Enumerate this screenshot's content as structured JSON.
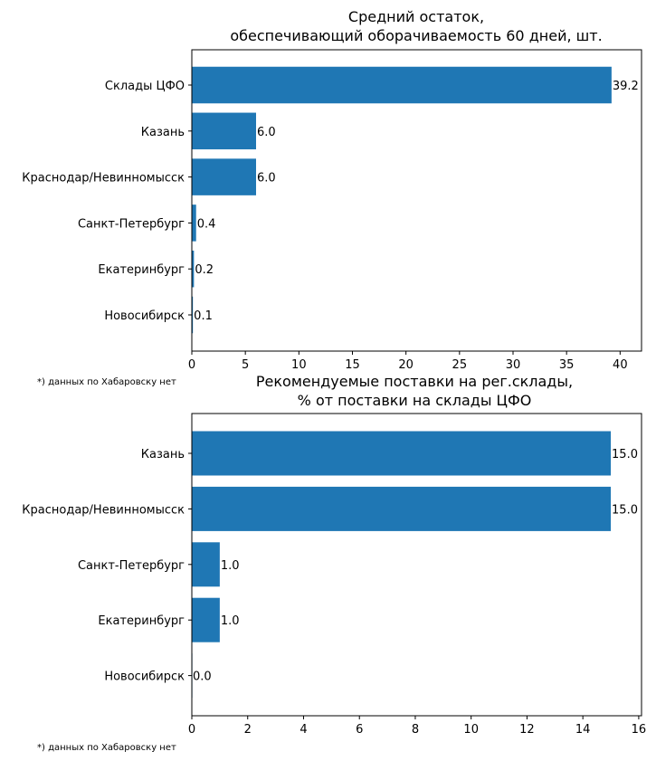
{
  "bar_color": "#1f77b4",
  "chart_data": [
    {
      "type": "bar",
      "orientation": "horizontal",
      "title": [
        "Средний остаток,",
        "обеспечивающий оборачиваемость 60 дней, шт."
      ],
      "categories": [
        "Склады ЦФО",
        "Казань",
        "Краснодар/Невинномысск",
        "Санкт-Петербург",
        "Екатеринбург",
        "Новосибирск"
      ],
      "values": [
        39.2,
        6.0,
        6.0,
        0.4,
        0.2,
        0.1
      ],
      "data_labels": [
        "39.2",
        "6.0",
        "6.0",
        "0.4",
        "0.2",
        "0.1"
      ],
      "xlim": [
        0,
        42
      ],
      "xticks": [
        0,
        5,
        10,
        15,
        20,
        25,
        30,
        35,
        40
      ],
      "footnote": "*) данных по Хабаровску нет"
    },
    {
      "type": "bar",
      "orientation": "horizontal",
      "title": [
        "Рекомендуемые поставки на рег.склады,",
        "% от поставки на склады ЦФО"
      ],
      "categories": [
        "Казань",
        "Краснодар/Невинномысск",
        "Санкт-Петербург",
        "Екатеринбург",
        "Новосибирск"
      ],
      "values": [
        15.0,
        15.0,
        1.0,
        1.0,
        0.0
      ],
      "data_labels": [
        "15.0",
        "15.0",
        "1.0",
        "1.0",
        "0.0"
      ],
      "xlim": [
        0,
        16.1
      ],
      "xticks": [
        0,
        2,
        4,
        6,
        8,
        10,
        12,
        14,
        16
      ],
      "footnote": "*) данных по Хабаровску нет"
    }
  ]
}
